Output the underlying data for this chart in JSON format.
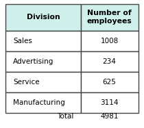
{
  "col1_header": "Division",
  "col2_header": "Number of\nemployees",
  "rows": [
    [
      "Sales",
      "1008"
    ],
    [
      "Advertising",
      "234"
    ],
    [
      "Service",
      "625"
    ],
    [
      "Manufacturing",
      "3114"
    ]
  ],
  "total_label": "Total",
  "total_value": "4981",
  "header_bg": "#cff0eb",
  "row_bg": "#ffffff",
  "border_color": "#444444",
  "text_color": "#000000",
  "figsize": [
    2.1,
    1.87
  ],
  "dpi": 100
}
